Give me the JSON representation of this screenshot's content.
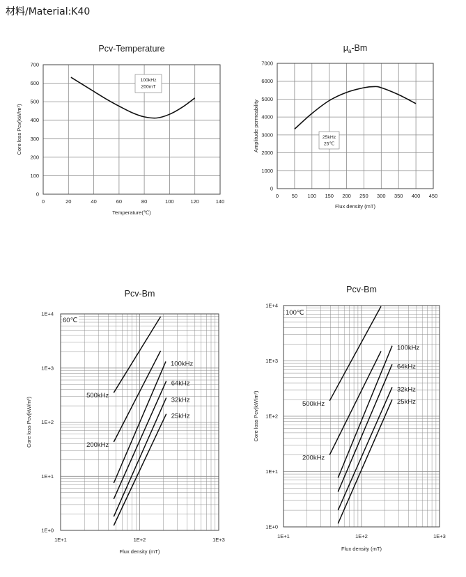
{
  "page": {
    "title": "材料/Material:K40"
  },
  "colors": {
    "line": "#111111",
    "grid": "#8c8c8c",
    "frame": "#444444"
  },
  "chart_data": [
    {
      "type": "line",
      "title": "Pcv-Temperature",
      "xlabel": "Temperature(℃)",
      "ylabel": "Core loss Pcv(kW/m³)",
      "xscale": "linear",
      "yscale": "linear",
      "xlim": [
        0,
        140
      ],
      "ylim": [
        0,
        700
      ],
      "xticks": [
        0,
        20,
        40,
        60,
        80,
        100,
        120,
        140
      ],
      "yticks": [
        0,
        100,
        200,
        300,
        400,
        500,
        600,
        700
      ],
      "grid": true,
      "annotation": [
        "100kHz",
        "200mT"
      ],
      "series": [
        {
          "x": [
            22,
            30,
            40,
            50,
            60,
            70,
            80,
            90,
            100,
            110,
            120
          ],
          "y": [
            632,
            598,
            556,
            514,
            476,
            442,
            418,
            412,
            432,
            470,
            520
          ]
        }
      ]
    },
    {
      "type": "line",
      "title": "μ",
      "title_subscript": "a",
      "title_suffix": "-Bm",
      "xlabel": "Flux density (mT)",
      "ylabel": "Amplitude permeability",
      "xscale": "linear",
      "yscale": "linear",
      "xlim": [
        0,
        450
      ],
      "ylim": [
        0,
        7000
      ],
      "xticks": [
        0,
        50,
        100,
        150,
        200,
        250,
        300,
        350,
        400,
        450
      ],
      "yticks": [
        0,
        1000,
        2000,
        3000,
        4000,
        5000,
        6000,
        7000
      ],
      "grid": true,
      "annotation": [
        "25kHz",
        "25℃"
      ],
      "series": [
        {
          "x": [
            50,
            100,
            150,
            200,
            250,
            280,
            300,
            350,
            400
          ],
          "y": [
            3330,
            4200,
            4920,
            5380,
            5640,
            5700,
            5640,
            5250,
            4750
          ]
        }
      ]
    },
    {
      "type": "line",
      "title": "Pcv-Bm",
      "xlabel": "Flux density (mT)",
      "ylabel": "Core loss Pcv(kW/m³)",
      "xscale": "log",
      "yscale": "log",
      "xlim": [
        10,
        1000
      ],
      "ylim": [
        1,
        10000
      ],
      "xticks": [
        10,
        100,
        1000
      ],
      "xticklabels": [
        "1E+1",
        "1E+2",
        "1E+3"
      ],
      "yticks": [
        1,
        10,
        100,
        1000,
        10000
      ],
      "yticklabels": [
        "1E+0",
        "1E+1",
        "1E+2",
        "1E+3",
        "1E+4"
      ],
      "grid": true,
      "annotation": [
        "60℃"
      ],
      "series": [
        {
          "name": "500kHz",
          "label_position": "left-of-start",
          "x": [
            47,
            184
          ],
          "y": [
            350,
            8900
          ]
        },
        {
          "name": "200kHz",
          "label_position": "left-of-start",
          "x": [
            47,
            184
          ],
          "y": [
            43,
            2080
          ]
        },
        {
          "name": "100kHz",
          "label_position": "right-of-end",
          "x": [
            47,
            214
          ],
          "y": [
            7.5,
            1320
          ]
        },
        {
          "name": "64kHz",
          "label_position": "right-of-end",
          "x": [
            47,
            217
          ],
          "y": [
            3.8,
            576
          ]
        },
        {
          "name": "32kHz",
          "label_position": "right-of-end",
          "x": [
            47,
            217
          ],
          "y": [
            1.8,
            283
          ]
        },
        {
          "name": "25kHz",
          "label_position": "right-of-end",
          "x": [
            47,
            217
          ],
          "y": [
            1.23,
            142
          ]
        }
      ]
    },
    {
      "type": "line",
      "title": "Pcv-Bm",
      "xlabel": "Flux density (mT)",
      "ylabel": "Core loss Pcv(kW/m³)",
      "xscale": "log",
      "yscale": "log",
      "xlim": [
        10,
        1000
      ],
      "ylim": [
        1,
        10000
      ],
      "xticks": [
        10,
        100,
        1000
      ],
      "xticklabels": [
        "1E+1",
        "1E+2",
        "1E+3"
      ],
      "yticks": [
        1,
        10,
        100,
        1000,
        10000
      ],
      "yticklabels": [
        "1E+0",
        "1E+1",
        "1E+2",
        "1E+3",
        "1E+4"
      ],
      "grid": true,
      "annotation": [
        "100℃"
      ],
      "series": [
        {
          "name": "500kHz",
          "label_position": "left-of-start",
          "x": [
            39,
            178
          ],
          "y": [
            190,
            9700
          ]
        },
        {
          "name": "200kHz",
          "label_position": "left-of-start",
          "x": [
            39,
            178
          ],
          "y": [
            20,
            1500
          ]
        },
        {
          "name": "100kHz",
          "label_position": "right-of-end",
          "x": [
            50,
            247
          ],
          "y": [
            7.7,
            1880
          ]
        },
        {
          "name": "64kHz",
          "label_position": "right-of-end",
          "x": [
            50,
            247
          ],
          "y": [
            4.3,
            870
          ]
        },
        {
          "name": "32kHz",
          "label_position": "right-of-end",
          "x": [
            50,
            247
          ],
          "y": [
            2.0,
            335
          ]
        },
        {
          "name": "25kHz",
          "label_position": "right-of-end",
          "x": [
            50,
            247
          ],
          "y": [
            1.15,
            200
          ]
        }
      ]
    }
  ]
}
